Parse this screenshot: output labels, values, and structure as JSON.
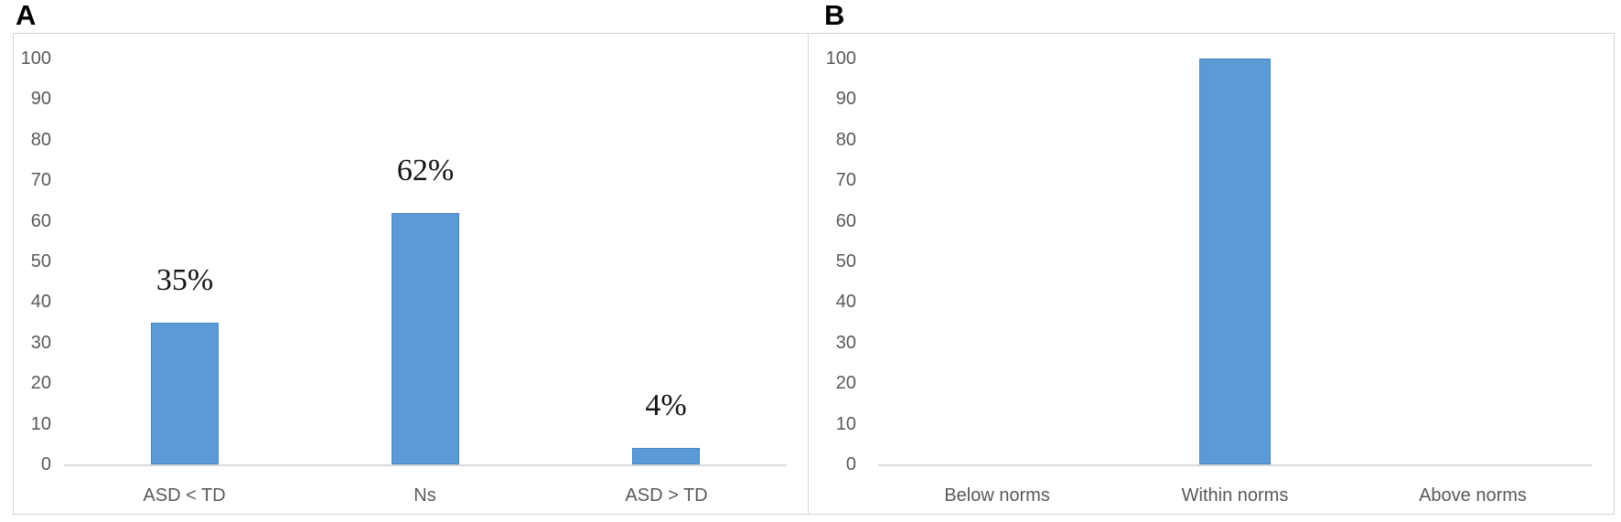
{
  "panels": [
    {
      "letter": "A"
    },
    {
      "letter": "B"
    }
  ],
  "chart_data": [
    {
      "type": "bar",
      "title": "",
      "xlabel": "",
      "ylabel": "",
      "categories": [
        "ASD < TD",
        "Ns",
        "ASD > TD"
      ],
      "values": [
        35,
        62,
        4
      ],
      "bar_labels": [
        "35%",
        "62%",
        "4%"
      ],
      "ylim": [
        0,
        100
      ],
      "y_tick_labels": [
        "100",
        "90",
        "80",
        "70",
        "60",
        "50",
        "40",
        "30",
        "20",
        "10",
        "0"
      ],
      "grid": false,
      "legend": "none"
    },
    {
      "type": "bar",
      "title": "",
      "xlabel": "",
      "ylabel": "",
      "categories": [
        "Below norms",
        "Within norms",
        "Above norms"
      ],
      "values": [
        0,
        100,
        0
      ],
      "bar_labels": [
        "",
        "",
        ""
      ],
      "ylim": [
        0,
        100
      ],
      "y_tick_labels": [
        "100",
        "90",
        "80",
        "70",
        "60",
        "50",
        "40",
        "30",
        "20",
        "10",
        "0"
      ],
      "grid": false,
      "legend": "none"
    }
  ],
  "colors": {
    "bar_fill": "#5b9bd5",
    "bar_edge": "#4a86c5",
    "axis_line": "#d9d9d9",
    "tick_text": "#595959",
    "category_text": "#595959",
    "value_label_text": "#141414",
    "panel_border": "#d6d6d6",
    "panel_letter": "#000000",
    "background": "#ffffff"
  }
}
